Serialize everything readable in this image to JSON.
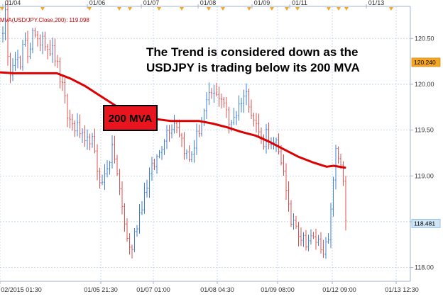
{
  "indicator_label": "MVA(USD/JPY.Close,200): 119.098",
  "annotation_lines": [
    "The Trend is considered down as the",
    "USDJPY is trading below its 200 MVA"
  ],
  "mva_label": "200 MVA",
  "colors": {
    "up_bar": "#3d7fd9",
    "down_bar": "#e05050",
    "mva": "#dd0000",
    "label_box": "#e8141e",
    "grid": "#bcd2e8",
    "tag_orange": "#f5a623",
    "tag_blue": "#cfe6f7"
  },
  "chart_data": {
    "type": "line",
    "title": "",
    "top_dates": [
      "01/04",
      "01/06",
      "01/07",
      "01/08",
      "01/09",
      "01/11",
      "01/13"
    ],
    "x_tick_labels": [
      "02/2015 01:30",
      "01/05 21:30",
      "01/07 01:00",
      "01/08 04:30",
      "01/09 08:00",
      "01/12 09:00",
      "01/13 12:30"
    ],
    "ylim": [
      117.85,
      120.85
    ],
    "y_ticks": [
      118.0,
      118.5,
      119.0,
      119.5,
      120.0,
      120.5
    ],
    "y_tick_labels": [
      "118.00",
      "118.50",
      "119.00",
      "119.50",
      "120.00",
      "120.50"
    ],
    "price_tags": [
      {
        "value": 120.24,
        "label": "120.240",
        "style": "orange"
      },
      {
        "value": 118.481,
        "label": "118.481",
        "style": "blue"
      }
    ],
    "price_keys": [
      [
        0,
        120.62
      ],
      [
        4,
        120.78
      ],
      [
        8,
        120.05
      ],
      [
        12,
        120.25
      ],
      [
        18,
        120.35
      ],
      [
        24,
        120.15
      ],
      [
        30,
        120.48
      ],
      [
        36,
        120.3
      ],
      [
        42,
        120.62
      ],
      [
        48,
        120.4
      ],
      [
        56,
        120.55
      ],
      [
        64,
        120.4
      ],
      [
        72,
        120.35
      ],
      [
        78,
        120.15
      ],
      [
        84,
        119.95
      ],
      [
        92,
        119.62
      ],
      [
        100,
        119.55
      ],
      [
        108,
        119.5
      ],
      [
        116,
        119.3
      ],
      [
        124,
        119.45
      ],
      [
        132,
        119.1
      ],
      [
        140,
        118.9
      ],
      [
        148,
        119.15
      ],
      [
        156,
        119.3
      ],
      [
        164,
        118.85
      ],
      [
        172,
        118.45
      ],
      [
        180,
        118.15
      ],
      [
        188,
        118.45
      ],
      [
        196,
        118.7
      ],
      [
        204,
        118.95
      ],
      [
        212,
        119.1
      ],
      [
        220,
        119.25
      ],
      [
        228,
        119.45
      ],
      [
        236,
        119.55
      ],
      [
        244,
        119.6
      ],
      [
        250,
        119.45
      ],
      [
        256,
        119.3
      ],
      [
        262,
        119.15
      ],
      [
        270,
        119.35
      ],
      [
        278,
        119.55
      ],
      [
        286,
        119.75
      ],
      [
        294,
        119.9
      ],
      [
        300,
        119.85
      ],
      [
        306,
        119.9
      ],
      [
        312,
        119.8
      ],
      [
        318,
        119.55
      ],
      [
        324,
        119.65
      ],
      [
        330,
        119.7
      ],
      [
        336,
        119.85
      ],
      [
        342,
        119.9
      ],
      [
        348,
        119.8
      ],
      [
        354,
        119.6
      ],
      [
        360,
        119.5
      ],
      [
        366,
        119.35
      ],
      [
        372,
        119.5
      ],
      [
        378,
        119.3
      ],
      [
        384,
        119.35
      ],
      [
        390,
        119.2
      ],
      [
        396,
        119.1
      ],
      [
        400,
        118.7
      ],
      [
        406,
        118.5
      ],
      [
        412,
        118.55
      ],
      [
        418,
        118.35
      ],
      [
        424,
        118.3
      ],
      [
        430,
        118.3
      ],
      [
        436,
        118.3
      ],
      [
        442,
        118.3
      ],
      [
        448,
        118.25
      ],
      [
        454,
        118.2
      ],
      [
        460,
        118.3
      ],
      [
        464,
        118.85
      ],
      [
        468,
        119.25
      ],
      [
        472,
        119.2
      ],
      [
        476,
        119.15
      ],
      [
        480,
        118.95
      ],
      [
        484,
        118.3
      ]
    ],
    "mva": [
      [
        0,
        120.13
      ],
      [
        20,
        120.12
      ],
      [
        40,
        120.12
      ],
      [
        80,
        120.12
      ],
      [
        100,
        120.06
      ],
      [
        120,
        119.98
      ],
      [
        140,
        119.88
      ],
      [
        160,
        119.78
      ],
      [
        180,
        119.68
      ],
      [
        200,
        119.63
      ],
      [
        220,
        119.62
      ],
      [
        240,
        119.6
      ],
      [
        260,
        119.6
      ],
      [
        280,
        119.6
      ],
      [
        300,
        119.57
      ],
      [
        320,
        119.53
      ],
      [
        340,
        119.48
      ],
      [
        360,
        119.44
      ],
      [
        380,
        119.37
      ],
      [
        400,
        119.29
      ],
      [
        420,
        119.21
      ],
      [
        440,
        119.15
      ],
      [
        460,
        119.1
      ],
      [
        470,
        119.11
      ],
      [
        486,
        119.09
      ]
    ]
  }
}
